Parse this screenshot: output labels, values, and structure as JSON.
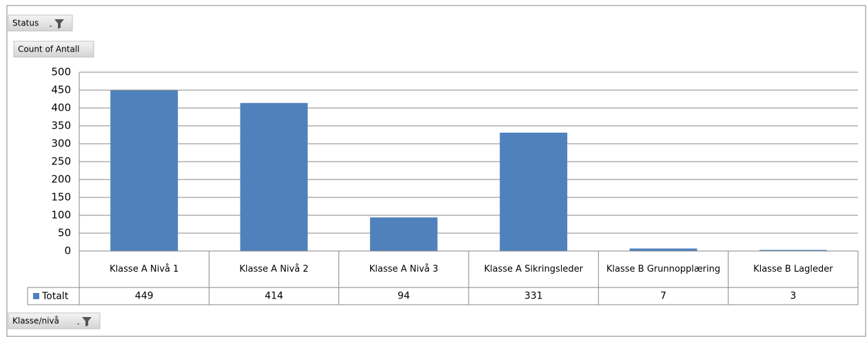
{
  "pivot_buttons": {
    "report_filter": "Status",
    "value_field": "Count of Antall",
    "axis_field": "Klasse/nivå"
  },
  "chart_data": {
    "type": "bar",
    "categories": [
      "Klasse A Nivå 1",
      "Klasse A Nivå 2",
      "Klasse A Nivå 3",
      "Klasse A Sikringsleder",
      "Klasse B Grunnopplæring",
      "Klasse B Lagleder"
    ],
    "series": [
      {
        "name": "Totalt",
        "color": "#4f81bd",
        "values": [
          449,
          414,
          94,
          331,
          7,
          3
        ]
      }
    ],
    "ylim": [
      0,
      500
    ],
    "yticks": [
      0,
      50,
      100,
      150,
      200,
      250,
      300,
      350,
      400,
      450,
      500
    ],
    "grid": true,
    "data_table": true
  }
}
